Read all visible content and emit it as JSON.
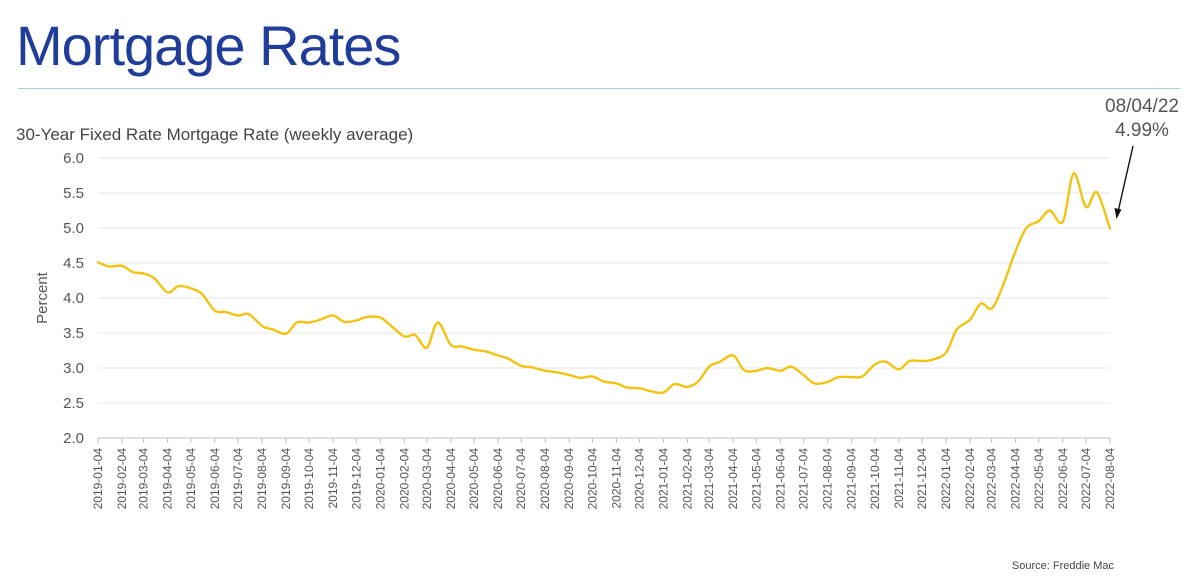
{
  "page": {
    "title": "Mortgage Rates",
    "source": "Source: Freddie Mac"
  },
  "annotation": {
    "date": "08/04/22",
    "value_label": "4.99%"
  },
  "colors": {
    "title": "#1f3d99",
    "line": "#f2c312",
    "rule": "#9fd4dc",
    "grid": "#e6e6e6",
    "axis_text": "#555555"
  },
  "chart_data": {
    "type": "line",
    "title": "30-Year Fixed Rate Mortgage Rate (weekly average)",
    "ylabel": "Percent",
    "ylim": [
      2.0,
      6.0
    ],
    "yticks": [
      "2.0",
      "2.5",
      "3.0",
      "3.5",
      "4.0",
      "4.5",
      "5.0",
      "5.5",
      "6.0"
    ],
    "xlim": [
      "2019-01-04",
      "2022-08-04"
    ],
    "grid": "horizontal",
    "xticks": [
      "2019-01-04",
      "2019-02-04",
      "2019-03-04",
      "2019-04-04",
      "2019-05-04",
      "2019-06-04",
      "2019-07-04",
      "2019-08-04",
      "2019-09-04",
      "2019-10-04",
      "2019-11-04",
      "2019-12-04",
      "2020-01-04",
      "2020-02-04",
      "2020-03-04",
      "2020-04-04",
      "2020-05-04",
      "2020-06-04",
      "2020-07-04",
      "2020-08-04",
      "2020-09-04",
      "2020-10-04",
      "2020-11-04",
      "2020-12-04",
      "2021-01-04",
      "2021-02-04",
      "2021-03-04",
      "2021-04-04",
      "2021-05-04",
      "2021-06-04",
      "2021-07-04",
      "2021-08-04",
      "2021-09-04",
      "2021-10-04",
      "2021-11-04",
      "2021-12-04",
      "2022-01-04",
      "2022-02-04",
      "2022-03-04",
      "2022-04-04",
      "2022-05-04",
      "2022-06-04",
      "2022-07-04",
      "2022-08-04"
    ],
    "series": [
      {
        "x": [
          "2019-01-04",
          "2019-01-18",
          "2019-02-04",
          "2019-02-18",
          "2019-03-04",
          "2019-03-18",
          "2019-04-04",
          "2019-04-18",
          "2019-05-04",
          "2019-05-18",
          "2019-06-04",
          "2019-06-18",
          "2019-07-04",
          "2019-07-18",
          "2019-08-04",
          "2019-08-18",
          "2019-09-04",
          "2019-09-18",
          "2019-10-04",
          "2019-10-18",
          "2019-11-04",
          "2019-11-18",
          "2019-12-04",
          "2019-12-18",
          "2020-01-04",
          "2020-01-18",
          "2020-02-04",
          "2020-02-18",
          "2020-03-04",
          "2020-03-18",
          "2020-04-04",
          "2020-04-18",
          "2020-05-04",
          "2020-05-18",
          "2020-06-04",
          "2020-06-18",
          "2020-07-04",
          "2020-07-18",
          "2020-08-04",
          "2020-08-18",
          "2020-09-04",
          "2020-09-18",
          "2020-10-04",
          "2020-10-18",
          "2020-11-04",
          "2020-11-18",
          "2020-12-04",
          "2020-12-18",
          "2021-01-04",
          "2021-01-18",
          "2021-02-04",
          "2021-02-18",
          "2021-03-04",
          "2021-03-18",
          "2021-04-04",
          "2021-04-18",
          "2021-05-04",
          "2021-05-18",
          "2021-06-04",
          "2021-06-18",
          "2021-07-04",
          "2021-07-18",
          "2021-08-04",
          "2021-08-18",
          "2021-09-04",
          "2021-09-18",
          "2021-10-04",
          "2021-10-18",
          "2021-11-04",
          "2021-11-18",
          "2021-12-04",
          "2021-12-18",
          "2022-01-04",
          "2022-01-18",
          "2022-02-04",
          "2022-02-18",
          "2022-03-04",
          "2022-03-18",
          "2022-04-04",
          "2022-04-18",
          "2022-05-04",
          "2022-05-18",
          "2022-06-04",
          "2022-06-18",
          "2022-07-04",
          "2022-07-18",
          "2022-08-04"
        ],
        "y": [
          4.51,
          4.45,
          4.46,
          4.37,
          4.35,
          4.28,
          4.08,
          4.17,
          4.14,
          4.06,
          3.82,
          3.8,
          3.75,
          3.77,
          3.6,
          3.55,
          3.49,
          3.65,
          3.65,
          3.69,
          3.75,
          3.66,
          3.68,
          3.73,
          3.72,
          3.6,
          3.45,
          3.47,
          3.29,
          3.65,
          3.33,
          3.31,
          3.26,
          3.24,
          3.18,
          3.13,
          3.03,
          3.01,
          2.96,
          2.94,
          2.9,
          2.86,
          2.88,
          2.81,
          2.78,
          2.72,
          2.71,
          2.67,
          2.65,
          2.77,
          2.73,
          2.81,
          3.02,
          3.09,
          3.18,
          2.97,
          2.96,
          3.0,
          2.96,
          3.02,
          2.9,
          2.78,
          2.8,
          2.87,
          2.87,
          2.88,
          3.05,
          3.09,
          2.98,
          3.1,
          3.1,
          3.12,
          3.22,
          3.55,
          3.69,
          3.92,
          3.85,
          4.16,
          4.67,
          5.0,
          5.1,
          5.25,
          5.09,
          5.78,
          5.3,
          5.51,
          4.99
        ]
      }
    ]
  }
}
